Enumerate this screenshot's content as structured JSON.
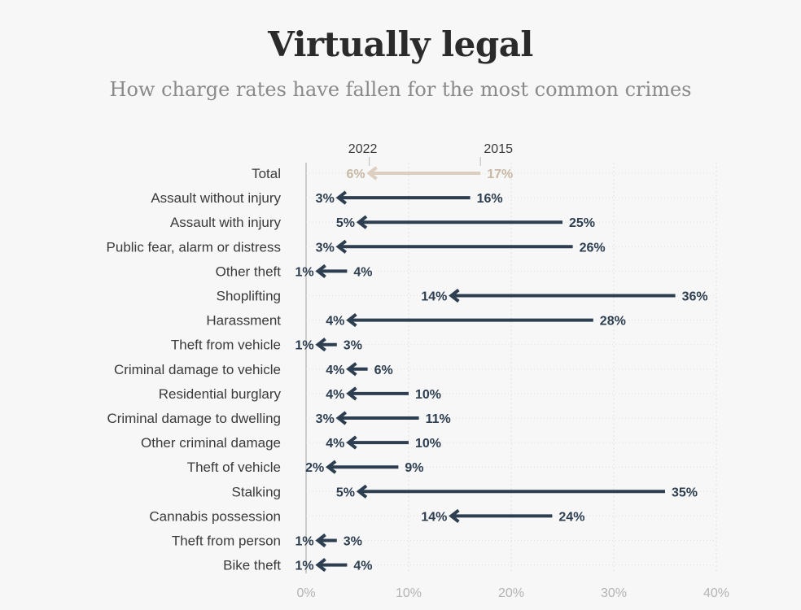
{
  "title": "Virtually legal",
  "subtitle": "How charge rates have fallen for the most common crimes",
  "chart_data": {
    "type": "arrow",
    "title": "Virtually legal",
    "subtitle": "How charge rates have fallen for the most common crimes",
    "years": [
      "2022",
      "2015"
    ],
    "xlim": [
      0,
      40
    ],
    "x_ticks": [
      {
        "value": 0,
        "label": "0%"
      },
      {
        "value": 10,
        "label": "10%"
      },
      {
        "value": 20,
        "label": "20%"
      },
      {
        "value": 30,
        "label": "30%"
      },
      {
        "value": 40,
        "label": "40%"
      }
    ],
    "rows": [
      {
        "category": "Total",
        "from": 17,
        "to": 6,
        "from_label": "17%",
        "to_label": "6%",
        "highlight": true
      },
      {
        "category": "Assault without injury",
        "from": 16,
        "to": 3,
        "from_label": "16%",
        "to_label": "3%"
      },
      {
        "category": "Assault with injury",
        "from": 25,
        "to": 5,
        "from_label": "25%",
        "to_label": "5%"
      },
      {
        "category": "Public fear, alarm or distress",
        "from": 26,
        "to": 3,
        "from_label": "26%",
        "to_label": "3%"
      },
      {
        "category": "Other theft",
        "from": 4,
        "to": 1,
        "from_label": "4%",
        "to_label": "1%"
      },
      {
        "category": "Shoplifting",
        "from": 36,
        "to": 14,
        "from_label": "36%",
        "to_label": "14%"
      },
      {
        "category": "Harassment",
        "from": 28,
        "to": 4,
        "from_label": "28%",
        "to_label": "4%"
      },
      {
        "category": "Theft from vehicle",
        "from": 3,
        "to": 1,
        "from_label": "3%",
        "to_label": "1%"
      },
      {
        "category": "Criminal damage to vehicle",
        "from": 6,
        "to": 4,
        "from_label": "6%",
        "to_label": "4%"
      },
      {
        "category": "Residential burglary",
        "from": 10,
        "to": 4,
        "from_label": "10%",
        "to_label": "4%"
      },
      {
        "category": "Criminal damage to dwelling",
        "from": 11,
        "to": 3,
        "from_label": "11%",
        "to_label": "3%"
      },
      {
        "category": "Other criminal damage",
        "from": 10,
        "to": 4,
        "from_label": "10%",
        "to_label": "4%"
      },
      {
        "category": "Theft of vehicle",
        "from": 9,
        "to": 2,
        "from_label": "9%",
        "to_label": "2%"
      },
      {
        "category": "Stalking",
        "from": 35,
        "to": 5,
        "from_label": "35%",
        "to_label": "5%"
      },
      {
        "category": "Cannabis possession",
        "from": 24,
        "to": 14,
        "from_label": "24%",
        "to_label": "14%"
      },
      {
        "category": "Theft from person",
        "from": 3,
        "to": 1,
        "from_label": "3%",
        "to_label": "1%"
      },
      {
        "category": "Bike theft",
        "from": 4,
        "to": 1,
        "from_label": "4%",
        "to_label": "1%"
      }
    ],
    "colors": {
      "arrow": "#2c3e50",
      "highlight_arrow": "#dccfbf",
      "highlight_text": "#c7b9a4",
      "grid": "#e0e0e0",
      "zero_line": "#bbbbbb"
    }
  }
}
